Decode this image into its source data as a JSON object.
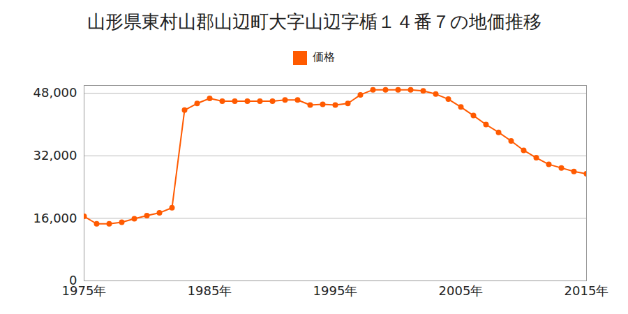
{
  "chart_data": {
    "type": "line",
    "title": "山形県東村山郡山辺町大字山辺字楯１４番７の地価推移",
    "x": [
      1975,
      1976,
      1977,
      1978,
      1979,
      1980,
      1981,
      1982,
      1983,
      1984,
      1985,
      1986,
      1987,
      1988,
      1989,
      1990,
      1991,
      1992,
      1993,
      1994,
      1995,
      1996,
      1997,
      1998,
      1999,
      2000,
      2001,
      2002,
      2003,
      2004,
      2005,
      2006,
      2007,
      2008,
      2009,
      2010,
      2011,
      2012,
      2013,
      2014,
      2015
    ],
    "series": [
      {
        "name": "価格",
        "color": "#ff5a00",
        "marker": "circle",
        "values": [
          16500,
          14600,
          14600,
          15000,
          15900,
          16700,
          17400,
          18700,
          43700,
          45400,
          46700,
          46000,
          46000,
          46000,
          46000,
          46000,
          46300,
          46300,
          45000,
          45200,
          45000,
          45400,
          47600,
          48900,
          48900,
          48900,
          48900,
          48600,
          47800,
          46500,
          44500,
          42300,
          40000,
          38000,
          35800,
          33400,
          31500,
          29800,
          28900,
          28000,
          27400
        ]
      }
    ],
    "xlim": [
      1975,
      2015
    ],
    "xticks": [
      {
        "value": 1975,
        "label": "1975年"
      },
      {
        "value": 1985,
        "label": "1985年"
      },
      {
        "value": 1995,
        "label": "1995年"
      },
      {
        "value": 2005,
        "label": "2005年"
      },
      {
        "value": 2015,
        "label": "2015年"
      }
    ],
    "ylim": [
      0,
      50000
    ],
    "yticks": [
      0,
      {
        "value": 16000,
        "label": "16,000"
      },
      {
        "value": 32000,
        "label": "32,000"
      },
      {
        "value": 48000,
        "label": "48,000"
      }
    ],
    "grid": true,
    "legend": "top"
  }
}
